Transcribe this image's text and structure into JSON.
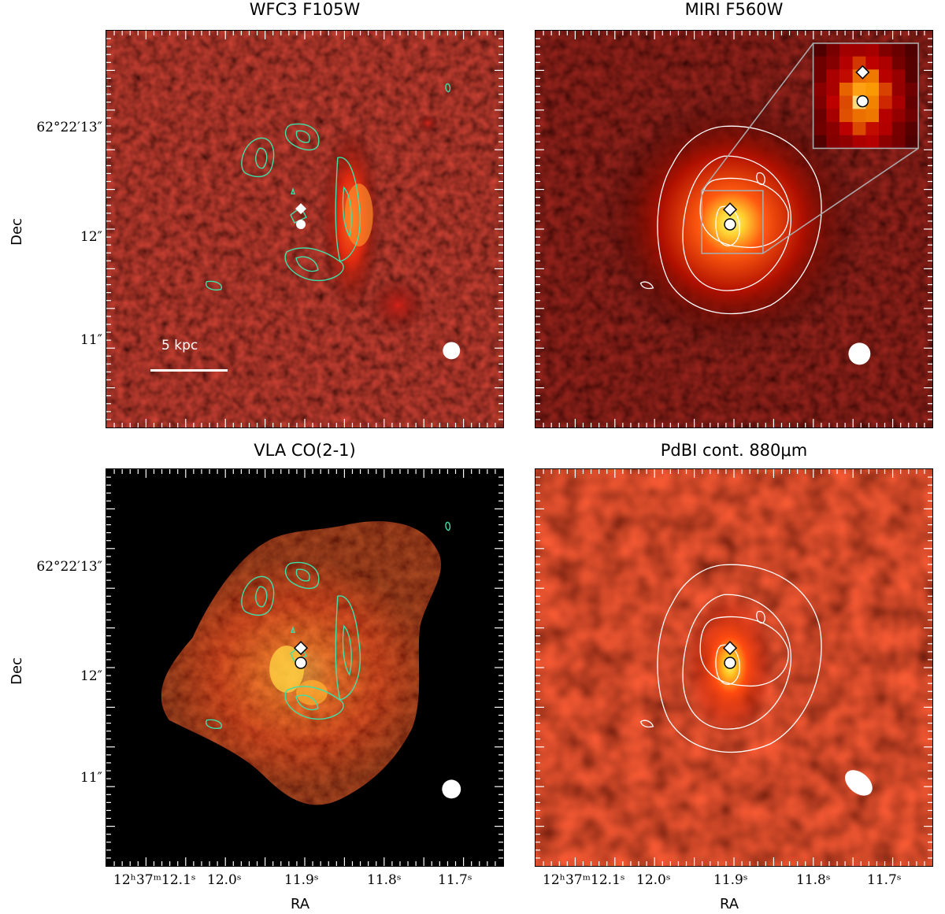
{
  "panels": {
    "top_left": {
      "title": "WFC3 F105W",
      "scale_label": "5 kpc"
    },
    "top_right": {
      "title": "MIRI F560W"
    },
    "bottom_left": {
      "title": "VLA CO(2-1)"
    },
    "bottom_right": {
      "title": "PdBI cont. 880μm"
    }
  },
  "axes": {
    "dec_label": "Dec",
    "ra_label": "RA",
    "dec_ticks_top": [
      "62°22′13″",
      "12″",
      "11″"
    ],
    "dec_ticks_bottom": [
      "62°22′13″",
      "12″",
      "11″"
    ],
    "ra_ticks_left": [
      "12ʰ37ᵐ12.1ˢ",
      "12.0ˢ",
      "11.9ˢ",
      "11.8ˢ",
      "11.7ˢ"
    ],
    "ra_ticks_right": [
      "12ʰ37ᵐ12.1ˢ",
      "12.0ˢ",
      "11.9ˢ",
      "11.8ˢ",
      "11.7ˢ"
    ]
  },
  "colors": {
    "contour_green": "#3fe0a8",
    "contour_white": "#ffffff",
    "inset_box": "#aaaaaa"
  }
}
